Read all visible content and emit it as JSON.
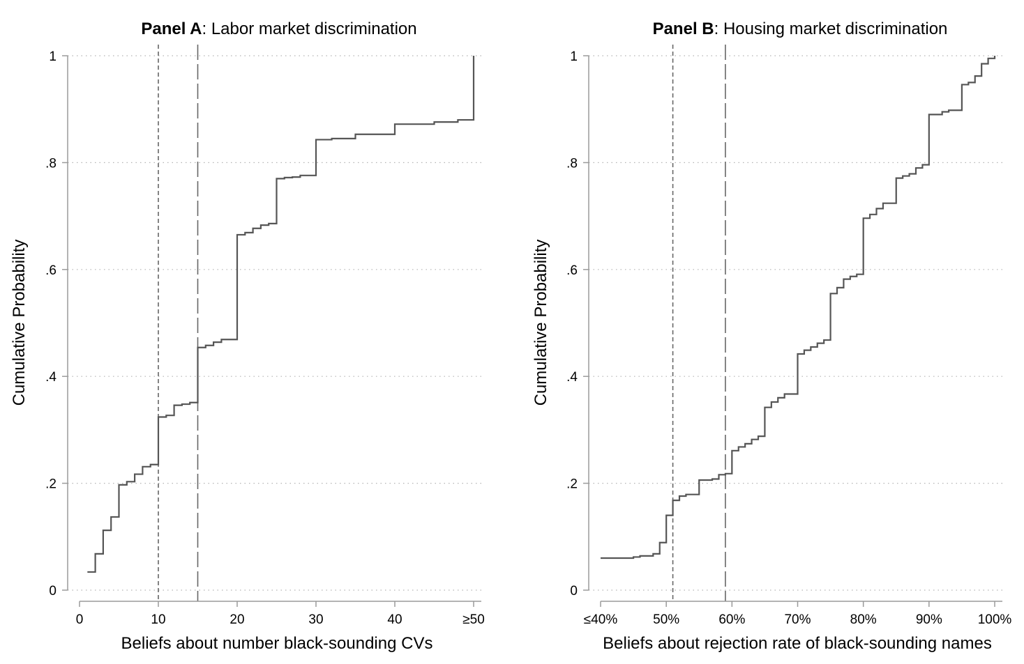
{
  "colors": {
    "line": "#555555",
    "grid": "#b3b3b3",
    "axis": "#9a9a9a",
    "vline": "#666666"
  },
  "chart_data": [
    {
      "type": "line",
      "step": "post",
      "title_bold": "Panel A",
      "title_rest": ": Labor market discrimination",
      "xlabel": "Beliefs about number black-sounding CVs",
      "ylabel": "Cumulative Probability",
      "xlim": [
        0,
        50
      ],
      "ylim": [
        0,
        1
      ],
      "xticks": [
        {
          "value": 0,
          "label": "0"
        },
        {
          "value": 10,
          "label": "10"
        },
        {
          "value": 20,
          "label": "20"
        },
        {
          "value": 30,
          "label": "30"
        },
        {
          "value": 40,
          "label": "40"
        },
        {
          "value": 50,
          "label": "≥50"
        }
      ],
      "yticks": [
        {
          "value": 0,
          "label": "0"
        },
        {
          "value": 0.2,
          "label": ".2"
        },
        {
          "value": 0.4,
          "label": ".4"
        },
        {
          "value": 0.6,
          "label": ".6"
        },
        {
          "value": 0.8,
          "label": ".8"
        },
        {
          "value": 1,
          "label": "1"
        }
      ],
      "grid": "horizontal dotted",
      "reference_lines": [
        {
          "x": 10,
          "style": "short-dash"
        },
        {
          "x": 15,
          "style": "long-dash"
        }
      ],
      "series": [
        {
          "x": [
            1,
            2,
            3,
            4,
            5,
            6,
            7,
            8,
            9,
            10,
            11,
            12,
            13,
            14,
            15,
            16,
            17,
            18,
            20,
            21,
            22,
            23,
            24,
            25,
            26,
            27,
            28,
            30,
            32,
            35,
            40,
            45,
            48,
            50
          ],
          "y": [
            0.034,
            0.068,
            0.112,
            0.137,
            0.197,
            0.203,
            0.217,
            0.231,
            0.235,
            0.324,
            0.327,
            0.346,
            0.348,
            0.351,
            0.454,
            0.458,
            0.464,
            0.469,
            0.665,
            0.669,
            0.677,
            0.683,
            0.686,
            0.77,
            0.772,
            0.773,
            0.776,
            0.843,
            0.845,
            0.853,
            0.872,
            0.876,
            0.88,
            1.0
          ]
        }
      ]
    },
    {
      "type": "line",
      "step": "post",
      "title_bold": "Panel B",
      "title_rest": ": Housing market discrimination",
      "xlabel": "Beliefs about rejection rate of black-sounding names",
      "ylabel": "Cumulative Probability",
      "xlim": [
        40,
        100
      ],
      "ylim": [
        0,
        1
      ],
      "xticks": [
        {
          "value": 40,
          "label": "≤40%"
        },
        {
          "value": 50,
          "label": "50%"
        },
        {
          "value": 60,
          "label": "60%"
        },
        {
          "value": 70,
          "label": "70%"
        },
        {
          "value": 80,
          "label": "80%"
        },
        {
          "value": 90,
          "label": "90%"
        },
        {
          "value": 100,
          "label": "100%"
        }
      ],
      "yticks": [
        {
          "value": 0,
          "label": "0"
        },
        {
          "value": 0.2,
          "label": ".2"
        },
        {
          "value": 0.4,
          "label": ".4"
        },
        {
          "value": 0.6,
          "label": ".6"
        },
        {
          "value": 0.8,
          "label": ".8"
        },
        {
          "value": 1,
          "label": "1"
        }
      ],
      "grid": "horizontal dotted",
      "reference_lines": [
        {
          "x": 51,
          "style": "short-dash"
        },
        {
          "x": 59,
          "style": "long-dash"
        }
      ],
      "series": [
        {
          "x": [
            40,
            45,
            46,
            48,
            49,
            50,
            51,
            52,
            53,
            55,
            57,
            58,
            59,
            60,
            61,
            62,
            63,
            64,
            65,
            66,
            67,
            68,
            70,
            71,
            72,
            73,
            74,
            75,
            76,
            77,
            78,
            79,
            80,
            81,
            82,
            83,
            85,
            86,
            87,
            88,
            89,
            90,
            92,
            93,
            95,
            96,
            97,
            98,
            99,
            100
          ],
          "y": [
            0.06,
            0.062,
            0.064,
            0.068,
            0.089,
            0.14,
            0.168,
            0.176,
            0.179,
            0.206,
            0.208,
            0.216,
            0.218,
            0.261,
            0.268,
            0.274,
            0.282,
            0.288,
            0.342,
            0.352,
            0.36,
            0.367,
            0.442,
            0.449,
            0.455,
            0.462,
            0.468,
            0.555,
            0.566,
            0.582,
            0.587,
            0.591,
            0.696,
            0.703,
            0.714,
            0.724,
            0.771,
            0.775,
            0.779,
            0.79,
            0.796,
            0.89,
            0.895,
            0.898,
            0.946,
            0.95,
            0.962,
            0.985,
            0.995,
            1.0
          ]
        }
      ]
    }
  ]
}
